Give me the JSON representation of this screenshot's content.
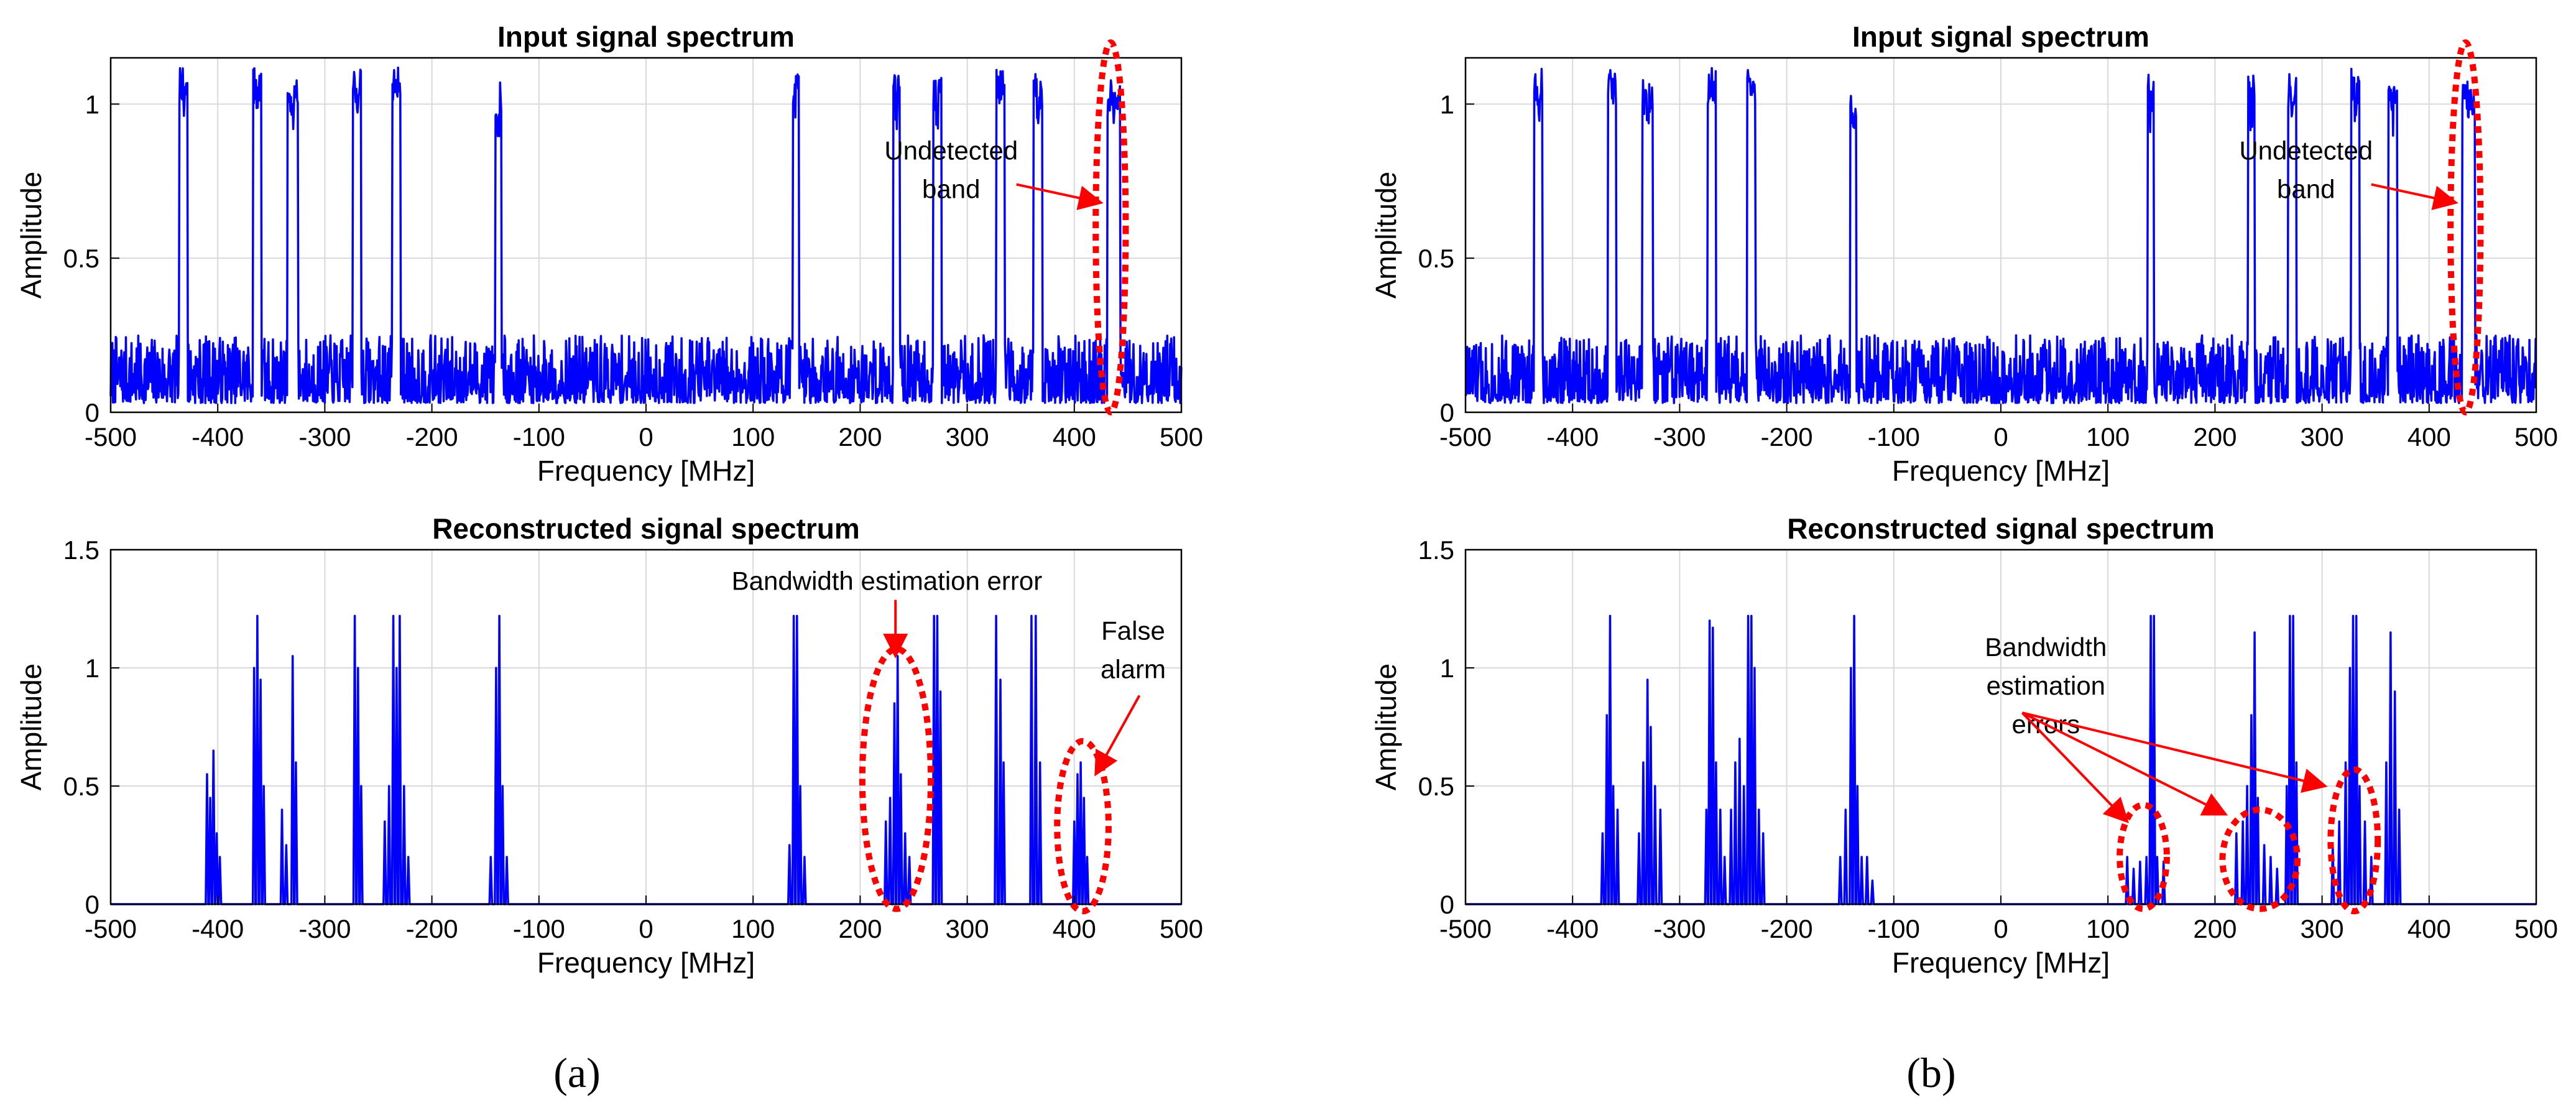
{
  "figure": {
    "panel_labels": [
      "(a)",
      "(b)"
    ]
  },
  "colors": {
    "signal": "#0000ff",
    "annotation": "#ff0000",
    "grid": "#d9d9d9",
    "axis": "#000000"
  },
  "chart_data": [
    {
      "id": "a-input",
      "panel": "(a)",
      "type": "line",
      "title": "Input signal spectrum",
      "xlabel": "Frequency [MHz]",
      "ylabel": "Amplitude",
      "xlim": [
        -500,
        500
      ],
      "ylim": [
        0,
        1.15
      ],
      "xticks": [
        -500,
        -400,
        -300,
        -200,
        -100,
        0,
        100,
        200,
        300,
        400,
        500
      ],
      "yticks": [
        0,
        0.5,
        1
      ],
      "grid": true,
      "noise_floor": [
        0.0,
        0.22
      ],
      "bands": [
        {
          "center": -432,
          "width": 8,
          "level": 1.12
        },
        {
          "center": -363,
          "width": 8,
          "level": 1.12
        },
        {
          "center": -330,
          "width": 10,
          "level": 1.08
        },
        {
          "center": -270,
          "width": 8,
          "level": 1.12
        },
        {
          "center": -233,
          "width": 8,
          "level": 1.12
        },
        {
          "center": -138,
          "width": 6,
          "level": 1.07
        },
        {
          "center": 140,
          "width": 6,
          "level": 1.12
        },
        {
          "center": 234,
          "width": 6,
          "level": 1.1
        },
        {
          "center": 272,
          "width": 8,
          "level": 1.1
        },
        {
          "center": 331,
          "width": 8,
          "level": 1.12
        },
        {
          "center": 366,
          "width": 8,
          "level": 1.1
        },
        {
          "center": 437,
          "width": 12,
          "level": 1.08
        }
      ],
      "annotations": [
        {
          "text_lines": [
            "Undetected",
            "band"
          ],
          "target": [
            425,
            0.68
          ],
          "text_at": [
            285,
            0.82
          ]
        }
      ],
      "ellipses": [
        {
          "center": [
            434,
            0.6
          ],
          "rx": 14,
          "ry": 0.6
        }
      ]
    },
    {
      "id": "a-reconstructed",
      "panel": "(a)",
      "type": "line",
      "title": "Reconstructed signal spectrum",
      "xlabel": "Frequency [MHz]",
      "ylabel": "Amplitude",
      "xlim": [
        -500,
        500
      ],
      "ylim": [
        0,
        1.5
      ],
      "xticks": [
        -500,
        -400,
        -300,
        -200,
        -100,
        0,
        100,
        200,
        300,
        400,
        500
      ],
      "yticks": [
        0,
        0.5,
        1,
        1.5
      ],
      "grid": true,
      "groups": [
        {
          "spikes": [
            [
              -410,
              0.55
            ],
            [
              -407,
              0.45
            ],
            [
              -404,
              0.65
            ],
            [
              -401,
              0.3
            ],
            [
              -398,
              0.2
            ]
          ]
        },
        {
          "spikes": [
            [
              -366,
              1.0
            ],
            [
              -363,
              1.22
            ],
            [
              -360,
              0.95
            ],
            [
              -357,
              0.5
            ]
          ]
        },
        {
          "spikes": [
            [
              -340,
              0.4
            ],
            [
              -336,
              0.25
            ],
            [
              -330,
              1.05
            ],
            [
              -327,
              0.6
            ]
          ]
        },
        {
          "spikes": [
            [
              -272,
              1.22
            ],
            [
              -269,
              1.0
            ],
            [
              -266,
              0.5
            ]
          ]
        },
        {
          "spikes": [
            [
              -244,
              0.35
            ],
            [
              -240,
              0.5
            ],
            [
              -236,
              1.22
            ],
            [
              -233,
              1.0
            ],
            [
              -230,
              1.22
            ],
            [
              -226,
              0.5
            ],
            [
              -222,
              0.2
            ]
          ]
        },
        {
          "spikes": [
            [
              -145,
              0.2
            ],
            [
              -140,
              1.0
            ],
            [
              -137,
              1.22
            ],
            [
              -134,
              0.5
            ],
            [
              -130,
              0.2
            ]
          ]
        },
        {
          "spikes": [
            [
              134,
              0.25
            ],
            [
              138,
              1.22
            ],
            [
              141,
              1.22
            ],
            [
              144,
              0.5
            ],
            [
              148,
              0.2
            ]
          ]
        },
        {
          "spikes": [
            [
              224,
              0.35
            ],
            [
              228,
              0.45
            ],
            [
              232,
              0.85
            ],
            [
              235,
              1.05
            ],
            [
              238,
              0.55
            ],
            [
              242,
              0.3
            ],
            [
              246,
              0.2
            ]
          ]
        },
        {
          "spikes": [
            [
              269,
              1.22
            ],
            [
              272,
              1.22
            ],
            [
              275,
              0.9
            ]
          ]
        },
        {
          "spikes": [
            [
              327,
              1.22
            ],
            [
              331,
              0.95
            ],
            [
              334,
              0.6
            ]
          ]
        },
        {
          "spikes": [
            [
              360,
              1.22
            ],
            [
              364,
              1.22
            ],
            [
              368,
              0.6
            ]
          ]
        },
        {
          "spikes": [
            [
              400,
              0.35
            ],
            [
              403,
              0.55
            ],
            [
              406,
              0.6
            ],
            [
              409,
              0.45
            ],
            [
              412,
              0.2
            ]
          ]
        }
      ],
      "annotations": [
        {
          "text_lines": [
            "Bandwidth estimation error"
          ],
          "target": [
            233,
            1.05
          ],
          "text_at": [
            225,
            1.33
          ]
        },
        {
          "text_lines": [
            "False",
            "alarm"
          ],
          "target": [
            420,
            0.55
          ],
          "text_at": [
            455,
            1.12
          ]
        }
      ],
      "ellipses": [
        {
          "center": [
            234,
            0.53
          ],
          "rx": 32,
          "ry": 0.55
        },
        {
          "center": [
            408,
            0.33
          ],
          "rx": 24,
          "ry": 0.36
        }
      ]
    },
    {
      "id": "b-input",
      "panel": "(b)",
      "type": "line",
      "title": "Input signal spectrum",
      "xlabel": "Frequency [MHz]",
      "ylabel": "Amplitude",
      "xlim": [
        -500,
        500
      ],
      "ylim": [
        0,
        1.15
      ],
      "xticks": [
        -500,
        -400,
        -300,
        -200,
        -100,
        0,
        100,
        200,
        300,
        400,
        500
      ],
      "yticks": [
        0,
        0.5,
        1
      ],
      "grid": true,
      "noise_floor": [
        0.0,
        0.22
      ],
      "bands": [
        {
          "center": -432,
          "width": 8,
          "level": 1.12
        },
        {
          "center": -363,
          "width": 8,
          "level": 1.12
        },
        {
          "center": -330,
          "width": 10,
          "level": 1.08
        },
        {
          "center": -270,
          "width": 8,
          "level": 1.12
        },
        {
          "center": -233,
          "width": 8,
          "level": 1.12
        },
        {
          "center": -138,
          "width": 6,
          "level": 1.07
        },
        {
          "center": 140,
          "width": 6,
          "level": 1.12
        },
        {
          "center": 234,
          "width": 6,
          "level": 1.1
        },
        {
          "center": 272,
          "width": 8,
          "level": 1.1
        },
        {
          "center": 331,
          "width": 8,
          "level": 1.12
        },
        {
          "center": 366,
          "width": 8,
          "level": 1.1
        },
        {
          "center": 437,
          "width": 12,
          "level": 1.08
        }
      ],
      "annotations": [
        {
          "text_lines": [
            "Undetected",
            "band"
          ],
          "target": [
            425,
            0.68
          ],
          "text_at": [
            285,
            0.82
          ]
        }
      ],
      "ellipses": [
        {
          "center": [
            434,
            0.6
          ],
          "rx": 14,
          "ry": 0.6
        }
      ]
    },
    {
      "id": "b-reconstructed",
      "panel": "(b)",
      "type": "line",
      "title": "Reconstructed signal spectrum",
      "xlabel": "Frequency [MHz]",
      "ylabel": "Amplitude",
      "xlim": [
        -500,
        500
      ],
      "ylim": [
        0,
        1.5
      ],
      "xticks": [
        -500,
        -400,
        -300,
        -200,
        -100,
        0,
        100,
        200,
        300,
        400,
        500
      ],
      "yticks": [
        0,
        0.5,
        1,
        1.5
      ],
      "grid": true,
      "groups": [
        {
          "spikes": [
            [
              -372,
              0.3
            ],
            [
              -368,
              0.8
            ],
            [
              -365,
              1.22
            ],
            [
              -362,
              0.5
            ],
            [
              -358,
              0.4
            ]
          ]
        },
        {
          "spikes": [
            [
              -338,
              0.3
            ],
            [
              -334,
              0.6
            ],
            [
              -330,
              0.95
            ],
            [
              -327,
              0.75
            ],
            [
              -323,
              0.5
            ],
            [
              -318,
              0.4
            ]
          ]
        },
        {
          "spikes": [
            [
              -275,
              0.4
            ],
            [
              -272,
              1.2
            ],
            [
              -269,
              1.17
            ],
            [
              -266,
              0.6
            ],
            [
              -262,
              0.4
            ],
            [
              -258,
              0.2
            ]
          ]
        },
        {
          "spikes": [
            [
              -252,
              0.4
            ],
            [
              -248,
              0.6
            ],
            [
              -244,
              0.7
            ],
            [
              -240,
              0.5
            ],
            [
              -236,
              1.22
            ],
            [
              -233,
              1.22
            ],
            [
              -230,
              1.0
            ],
            [
              -226,
              0.4
            ],
            [
              -222,
              0.3
            ]
          ]
        },
        {
          "spikes": [
            [
              -150,
              0.2
            ],
            [
              -145,
              0.4
            ],
            [
              -140,
              1.0
            ],
            [
              -137,
              1.22
            ],
            [
              -134,
              0.5
            ],
            [
              -130,
              0.2
            ],
            [
              -125,
              0.2
            ],
            [
              -120,
              0.1
            ]
          ]
        },
        {
          "spikes": [
            [
              118,
              0.2
            ],
            [
              124,
              0.15
            ],
            [
              130,
              0.18
            ],
            [
              136,
              0.2
            ],
            [
              140,
              1.22
            ],
            [
              143,
              1.22
            ],
            [
              146,
              0.2
            ],
            [
              152,
              0.18
            ]
          ]
        },
        {
          "spikes": [
            [
              220,
              0.3
            ],
            [
              226,
              0.35
            ],
            [
              230,
              0.5
            ],
            [
              234,
              0.8
            ],
            [
              237,
              1.15
            ],
            [
              240,
              0.45
            ],
            [
              246,
              0.25
            ],
            [
              252,
              0.2
            ],
            [
              258,
              0.15
            ]
          ]
        },
        {
          "spikes": [
            [
              267,
              0.5
            ],
            [
              270,
              1.22
            ],
            [
              273,
              1.22
            ],
            [
              276,
              0.6
            ]
          ]
        },
        {
          "spikes": [
            [
              310,
              0.25
            ],
            [
              316,
              0.35
            ],
            [
              322,
              0.6
            ],
            [
              326,
              1.0
            ],
            [
              329,
              1.22
            ],
            [
              332,
              1.22
            ],
            [
              335,
              0.5
            ],
            [
              340,
              0.35
            ],
            [
              346,
              0.2
            ]
          ]
        },
        {
          "spikes": [
            [
              360,
              0.6
            ],
            [
              364,
              1.15
            ],
            [
              368,
              0.9
            ],
            [
              372,
              0.4
            ]
          ]
        }
      ],
      "annotations": [
        {
          "text_lines": [
            "Bandwidth",
            "estimation",
            "errors"
          ],
          "text_at": [
            42,
            1.05
          ],
          "targets": [
            [
              118,
              0.35
            ],
            [
              210,
              0.38
            ],
            [
              303,
              0.5
            ]
          ],
          "arrow_from": [
            20,
            0.81
          ]
        }
      ],
      "ellipses": [
        {
          "center": [
            133,
            0.2
          ],
          "rx": 22,
          "ry": 0.22
        },
        {
          "center": [
            242,
            0.19
          ],
          "rx": 35,
          "ry": 0.21
        },
        {
          "center": [
            330,
            0.27
          ],
          "rx": 22,
          "ry": 0.3
        }
      ]
    }
  ]
}
